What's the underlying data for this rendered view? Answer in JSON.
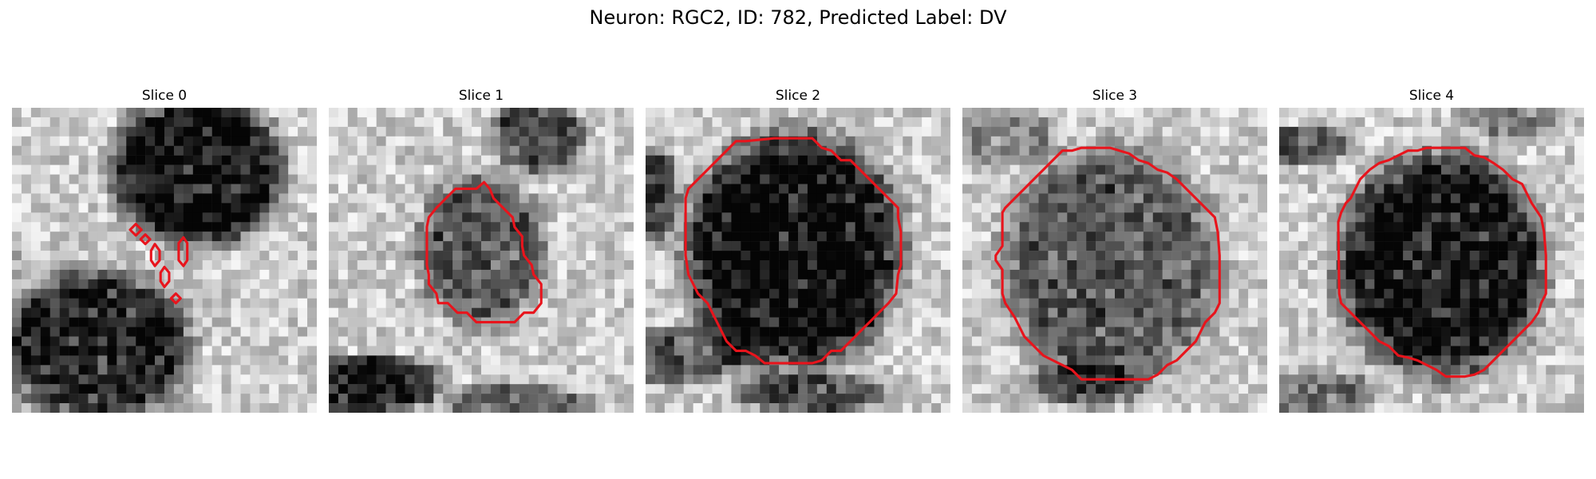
{
  "figure": {
    "title": "Neuron: RGC2, ID: 782, Predicted Label: DV"
  },
  "panels": [
    {
      "title": "Slice 0"
    },
    {
      "title": "Slice 1"
    },
    {
      "title": "Slice 2"
    },
    {
      "title": "Slice 3"
    },
    {
      "title": "Slice 4"
    }
  ],
  "colors": {
    "contour": "#e8141c",
    "background": "#ffffff"
  },
  "colormap": "grayscale"
}
